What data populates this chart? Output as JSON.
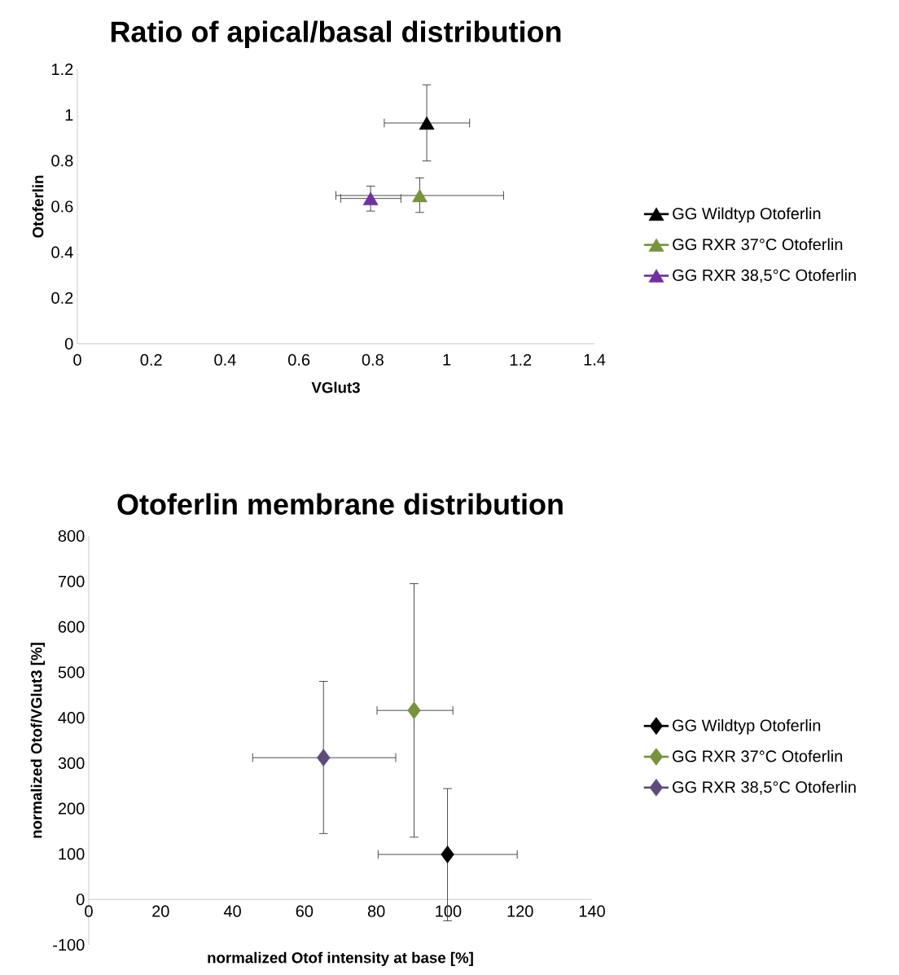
{
  "chart_data": [
    {
      "type": "scatter",
      "title": "Ratio of apical/basal distribution",
      "xlabel": "VGlut3",
      "ylabel": "Otoferlin",
      "xlim": [
        0,
        1.4
      ],
      "xticks": [
        0,
        0.2,
        0.4,
        0.6,
        0.8,
        1,
        1.2,
        1.4
      ],
      "ylim": [
        0,
        1.2
      ],
      "yticks": [
        0,
        0.2,
        0.4,
        0.6,
        0.8,
        1,
        1.2
      ],
      "marker": "triangle",
      "legend": "right",
      "grid": false,
      "series": [
        {
          "name": "GG Wildtyp Otoferlin",
          "color": "#000000",
          "x": [
            0.946
          ],
          "values": [
            0.965
          ],
          "errors": [
            [
              0.799,
              1.132
            ]
          ],
          "xerrors": [
            [
              0.831,
              1.062
            ]
          ]
        },
        {
          "name": "GG RXR 37°C Otoferlin",
          "color": "#77933c",
          "x": [
            0.927
          ],
          "values": [
            0.648
          ],
          "errors": [
            [
              0.574,
              0.725
            ]
          ],
          "xerrors": [
            [
              0.7,
              1.154
            ]
          ]
        },
        {
          "name": "GG RXR 38,5°C Otoferlin",
          "color": "#7030a0",
          "x": [
            0.794
          ],
          "values": [
            0.635
          ],
          "errors": [
            [
              0.58,
              0.689
            ]
          ],
          "xerrors": [
            [
              0.713,
              0.876
            ]
          ]
        }
      ]
    },
    {
      "type": "scatter",
      "title": "Otoferlin membrane distribution",
      "xlabel": "normalized Otof intensity at base [%]",
      "ylabel": "normalized Otof/VGlut3 [%]",
      "xlim": [
        0,
        140
      ],
      "xticks": [
        0,
        20,
        40,
        60,
        80,
        100,
        120,
        140
      ],
      "ylim": [
        -100,
        800
      ],
      "yticks": [
        -100,
        0,
        100,
        200,
        300,
        400,
        500,
        600,
        700,
        800
      ],
      "marker": "diamond",
      "legend": "right",
      "grid": false,
      "series": [
        {
          "name": "GG Wildtyp Otoferlin",
          "color": "#000000",
          "x": [
            99.8
          ],
          "values": [
            99
          ],
          "errors": [
            [
              -47,
              244
            ]
          ],
          "xerrors": [
            [
              80.5,
              119.2
            ]
          ]
        },
        {
          "name": "GG RXR 37°C Otoferlin",
          "color": "#77933c",
          "x": [
            90.5
          ],
          "values": [
            416
          ],
          "errors": [
            [
              137,
              695
            ]
          ],
          "xerrors": [
            [
              80.2,
              101.3
            ]
          ]
        },
        {
          "name": "GG RXR 38,5°C Otoferlin",
          "color": "#604a7b",
          "x": [
            65.3
          ],
          "values": [
            312
          ],
          "errors": [
            [
              145,
              480
            ]
          ],
          "xerrors": [
            [
              45.6,
              85.4
            ]
          ]
        }
      ]
    }
  ]
}
